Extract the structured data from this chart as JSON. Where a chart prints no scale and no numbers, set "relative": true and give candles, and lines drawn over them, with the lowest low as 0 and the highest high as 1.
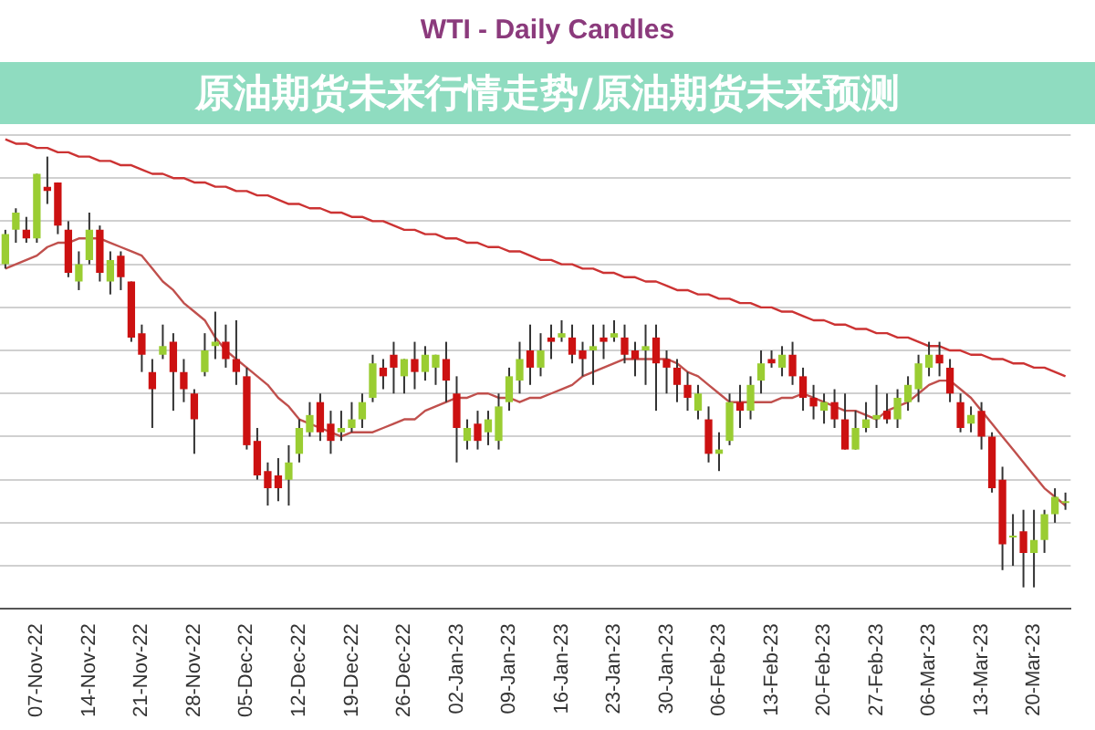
{
  "chart_data": {
    "type": "candlestick",
    "title": "WTI - Daily Candles",
    "relative": true,
    "grid": "y",
    "annotations": [
      "原油期货未来行情走势/原油期货未来预测"
    ],
    "categories": [
      null,
      null,
      null,
      "07-Nov-22",
      null,
      null,
      null,
      null,
      "14-Nov-22",
      null,
      null,
      null,
      null,
      "21-Nov-22",
      null,
      null,
      null,
      null,
      "28-Nov-22",
      null,
      null,
      null,
      null,
      "05-Dec-22",
      null,
      null,
      null,
      null,
      "12-Dec-22",
      null,
      null,
      null,
      null,
      "19-Dec-22",
      null,
      null,
      null,
      null,
      "26-Dec-22",
      null,
      null,
      null,
      null,
      "02-Jan-23",
      null,
      null,
      null,
      null,
      "09-Jan-23",
      null,
      null,
      null,
      null,
      "16-Jan-23",
      null,
      null,
      null,
      null,
      "23-Jan-23",
      null,
      null,
      null,
      null,
      "30-Jan-23",
      null,
      null,
      null,
      null,
      "06-Feb-23",
      null,
      null,
      null,
      null,
      "13-Feb-23",
      null,
      null,
      null,
      null,
      "20-Feb-23",
      null,
      null,
      null,
      null,
      "27-Feb-23",
      null,
      null,
      null,
      null,
      "06-Mar-23",
      null,
      null,
      null,
      null,
      "13-Mar-23",
      null,
      null,
      null,
      null,
      "20-Mar-23",
      null,
      null,
      null
    ],
    "series": [
      {
        "type": "line",
        "color": "#cc3333",
        "values": [
          1.04,
          1.03,
          1.03,
          1.02,
          1.02,
          1.01,
          1.01,
          1.0,
          1.0,
          0.99,
          0.99,
          0.98,
          0.98,
          0.97,
          0.96,
          0.96,
          0.95,
          0.95,
          0.94,
          0.94,
          0.93,
          0.93,
          0.92,
          0.92,
          0.91,
          0.91,
          0.9,
          0.89,
          0.89,
          0.88,
          0.88,
          0.87,
          0.87,
          0.86,
          0.86,
          0.85,
          0.85,
          0.84,
          0.83,
          0.83,
          0.82,
          0.82,
          0.81,
          0.81,
          0.8,
          0.8,
          0.79,
          0.79,
          0.78,
          0.78,
          0.77,
          0.76,
          0.76,
          0.75,
          0.75,
          0.74,
          0.74,
          0.73,
          0.73,
          0.72,
          0.72,
          0.71,
          0.71,
          0.7,
          0.69,
          0.69,
          0.68,
          0.68,
          0.67,
          0.67,
          0.66,
          0.66,
          0.65,
          0.65,
          0.64,
          0.64,
          0.63,
          0.62,
          0.62,
          0.61,
          0.61,
          0.6,
          0.6,
          0.59,
          0.59,
          0.58,
          0.58,
          0.57,
          0.56,
          0.56,
          0.55,
          0.55,
          0.54,
          0.54,
          0.53,
          0.53,
          0.52,
          0.52,
          0.51,
          0.51,
          0.5,
          0.49
        ]
      },
      {
        "type": "line",
        "color": "#c0504d",
        "values": [
          0.74,
          0.75,
          0.76,
          0.77,
          0.79,
          0.8,
          0.8,
          0.81,
          0.81,
          0.81,
          0.8,
          0.79,
          0.78,
          0.77,
          0.74,
          0.71,
          0.69,
          0.66,
          0.64,
          0.62,
          0.58,
          0.55,
          0.53,
          0.51,
          0.49,
          0.47,
          0.44,
          0.42,
          0.39,
          0.38,
          0.37,
          0.36,
          0.35,
          0.36,
          0.36,
          0.36,
          0.37,
          0.38,
          0.39,
          0.39,
          0.41,
          0.42,
          0.43,
          0.44,
          0.44,
          0.45,
          0.45,
          0.44,
          0.44,
          0.43,
          0.44,
          0.44,
          0.45,
          0.46,
          0.47,
          0.49,
          0.5,
          0.51,
          0.52,
          0.53,
          0.53,
          0.53,
          0.53,
          0.53,
          0.52,
          0.5,
          0.49,
          0.47,
          0.45,
          0.43,
          0.43,
          0.43,
          0.43,
          0.43,
          0.44,
          0.44,
          0.45,
          0.44,
          0.43,
          0.42,
          0.41,
          0.41,
          0.4,
          0.39,
          0.41,
          0.42,
          0.43,
          0.45,
          0.47,
          0.48,
          0.48,
          0.46,
          0.44,
          0.41,
          0.38,
          0.35,
          0.32,
          0.29,
          0.26,
          0.23,
          0.21,
          0.19
        ]
      },
      {
        "ohlc": [
          [
            0.75,
            0.83,
            0.74,
            0.82
          ],
          [
            0.83,
            0.88,
            0.8,
            0.87
          ],
          [
            0.83,
            0.86,
            0.8,
            0.81
          ],
          [
            0.81,
            0.96,
            0.8,
            0.96
          ],
          [
            0.93,
            1.0,
            0.89,
            0.92
          ],
          [
            0.94,
            0.94,
            0.82,
            0.84
          ],
          [
            0.83,
            0.85,
            0.72,
            0.73
          ],
          [
            0.71,
            0.78,
            0.69,
            0.75
          ],
          [
            0.76,
            0.87,
            0.75,
            0.83
          ],
          [
            0.83,
            0.84,
            0.71,
            0.73
          ],
          [
            0.71,
            0.78,
            0.68,
            0.76
          ],
          [
            0.77,
            0.78,
            0.69,
            0.72
          ],
          [
            0.71,
            0.71,
            0.57,
            0.58
          ],
          [
            0.59,
            0.61,
            0.5,
            0.54
          ],
          [
            0.5,
            0.53,
            0.37,
            0.46
          ],
          [
            0.54,
            0.61,
            0.53,
            0.56
          ],
          [
            0.57,
            0.59,
            0.41,
            0.5
          ],
          [
            0.5,
            0.53,
            0.43,
            0.46
          ],
          [
            0.45,
            0.46,
            0.31,
            0.39
          ],
          [
            0.5,
            0.59,
            0.49,
            0.55
          ],
          [
            0.56,
            0.64,
            0.53,
            0.57
          ],
          [
            0.57,
            0.61,
            0.51,
            0.53
          ],
          [
            0.53,
            0.62,
            0.47,
            0.5
          ],
          [
            0.49,
            0.51,
            0.32,
            0.33
          ],
          [
            0.34,
            0.37,
            0.25,
            0.26
          ],
          [
            0.27,
            0.29,
            0.19,
            0.23
          ],
          [
            0.26,
            0.3,
            0.2,
            0.23
          ],
          [
            0.25,
            0.33,
            0.19,
            0.29
          ],
          [
            0.31,
            0.39,
            0.29,
            0.37
          ],
          [
            0.36,
            0.43,
            0.35,
            0.4
          ],
          [
            0.43,
            0.45,
            0.34,
            0.36
          ],
          [
            0.38,
            0.41,
            0.31,
            0.34
          ],
          [
            0.36,
            0.41,
            0.34,
            0.37
          ],
          [
            0.37,
            0.43,
            0.36,
            0.39
          ],
          [
            0.39,
            0.45,
            0.37,
            0.43
          ],
          [
            0.44,
            0.54,
            0.43,
            0.52
          ],
          [
            0.51,
            0.53,
            0.46,
            0.49
          ],
          [
            0.54,
            0.57,
            0.45,
            0.51
          ],
          [
            0.49,
            0.53,
            0.45,
            0.53
          ],
          [
            0.53,
            0.57,
            0.46,
            0.5
          ],
          [
            0.5,
            0.56,
            0.48,
            0.54
          ],
          [
            0.51,
            0.54,
            0.47,
            0.54
          ],
          [
            0.53,
            0.57,
            0.43,
            0.48
          ],
          [
            0.45,
            0.49,
            0.29,
            0.37
          ],
          [
            0.34,
            0.39,
            0.32,
            0.37
          ],
          [
            0.38,
            0.41,
            0.32,
            0.34
          ],
          [
            0.36,
            0.41,
            0.33,
            0.39
          ],
          [
            0.34,
            0.45,
            0.32,
            0.42
          ],
          [
            0.43,
            0.51,
            0.41,
            0.49
          ],
          [
            0.48,
            0.57,
            0.45,
            0.53
          ],
          [
            0.55,
            0.61,
            0.47,
            0.51
          ],
          [
            0.51,
            0.59,
            0.49,
            0.55
          ],
          [
            0.58,
            0.61,
            0.53,
            0.57
          ],
          [
            0.58,
            0.62,
            0.57,
            0.59
          ],
          [
            0.58,
            0.61,
            0.52,
            0.54
          ],
          [
            0.55,
            0.57,
            0.49,
            0.53
          ],
          [
            0.55,
            0.61,
            0.47,
            0.56
          ],
          [
            0.58,
            0.61,
            0.53,
            0.57
          ],
          [
            0.58,
            0.62,
            0.57,
            0.59
          ],
          [
            0.58,
            0.61,
            0.52,
            0.54
          ],
          [
            0.55,
            0.57,
            0.49,
            0.53
          ],
          [
            0.55,
            0.61,
            0.47,
            0.56
          ],
          [
            0.58,
            0.61,
            0.41,
            0.52
          ],
          [
            0.53,
            0.55,
            0.45,
            0.51
          ],
          [
            0.51,
            0.53,
            0.43,
            0.47
          ],
          [
            0.47,
            0.5,
            0.41,
            0.44
          ],
          [
            0.41,
            0.47,
            0.39,
            0.45
          ],
          [
            0.39,
            0.42,
            0.29,
            0.31
          ],
          [
            0.31,
            0.36,
            0.27,
            0.32
          ],
          [
            0.34,
            0.45,
            0.33,
            0.43
          ],
          [
            0.43,
            0.47,
            0.37,
            0.41
          ],
          [
            0.41,
            0.49,
            0.39,
            0.47
          ],
          [
            0.48,
            0.55,
            0.45,
            0.52
          ],
          [
            0.53,
            0.55,
            0.51,
            0.52
          ],
          [
            0.51,
            0.56,
            0.49,
            0.54
          ],
          [
            0.54,
            0.57,
            0.47,
            0.49
          ],
          [
            0.49,
            0.51,
            0.41,
            0.44
          ],
          [
            0.44,
            0.47,
            0.39,
            0.42
          ],
          [
            0.41,
            0.45,
            0.38,
            0.43
          ],
          [
            0.43,
            0.46,
            0.37,
            0.39
          ],
          [
            0.39,
            0.45,
            0.32,
            0.32
          ],
          [
            0.32,
            0.41,
            0.32,
            0.37
          ],
          [
            0.37,
            0.43,
            0.36,
            0.39
          ],
          [
            0.39,
            0.47,
            0.37,
            0.4
          ],
          [
            0.41,
            0.45,
            0.38,
            0.39
          ],
          [
            0.39,
            0.46,
            0.37,
            0.44
          ],
          [
            0.43,
            0.49,
            0.41,
            0.47
          ],
          [
            0.46,
            0.54,
            0.43,
            0.52
          ],
          [
            0.51,
            0.57,
            0.49,
            0.54
          ],
          [
            0.54,
            0.57,
            0.49,
            0.52
          ],
          [
            0.51,
            0.53,
            0.43,
            0.45
          ],
          [
            0.43,
            0.45,
            0.36,
            0.37
          ],
          [
            0.38,
            0.42,
            0.36,
            0.4
          ],
          [
            0.41,
            0.43,
            0.32,
            0.35
          ],
          [
            0.35,
            0.36,
            0.22,
            0.23
          ],
          [
            0.25,
            0.28,
            0.04,
            0.1
          ],
          [
            0.12,
            0.17,
            0.05,
            0.12
          ],
          [
            0.13,
            0.18,
            0.0,
            0.08
          ],
          [
            0.08,
            0.18,
            0.0,
            0.11
          ],
          [
            0.11,
            0.18,
            0.08,
            0.17
          ],
          [
            0.17,
            0.23,
            0.15,
            0.21
          ],
          [
            0.2,
            0.22,
            0.18,
            0.2
          ]
        ]
      }
    ]
  }
}
